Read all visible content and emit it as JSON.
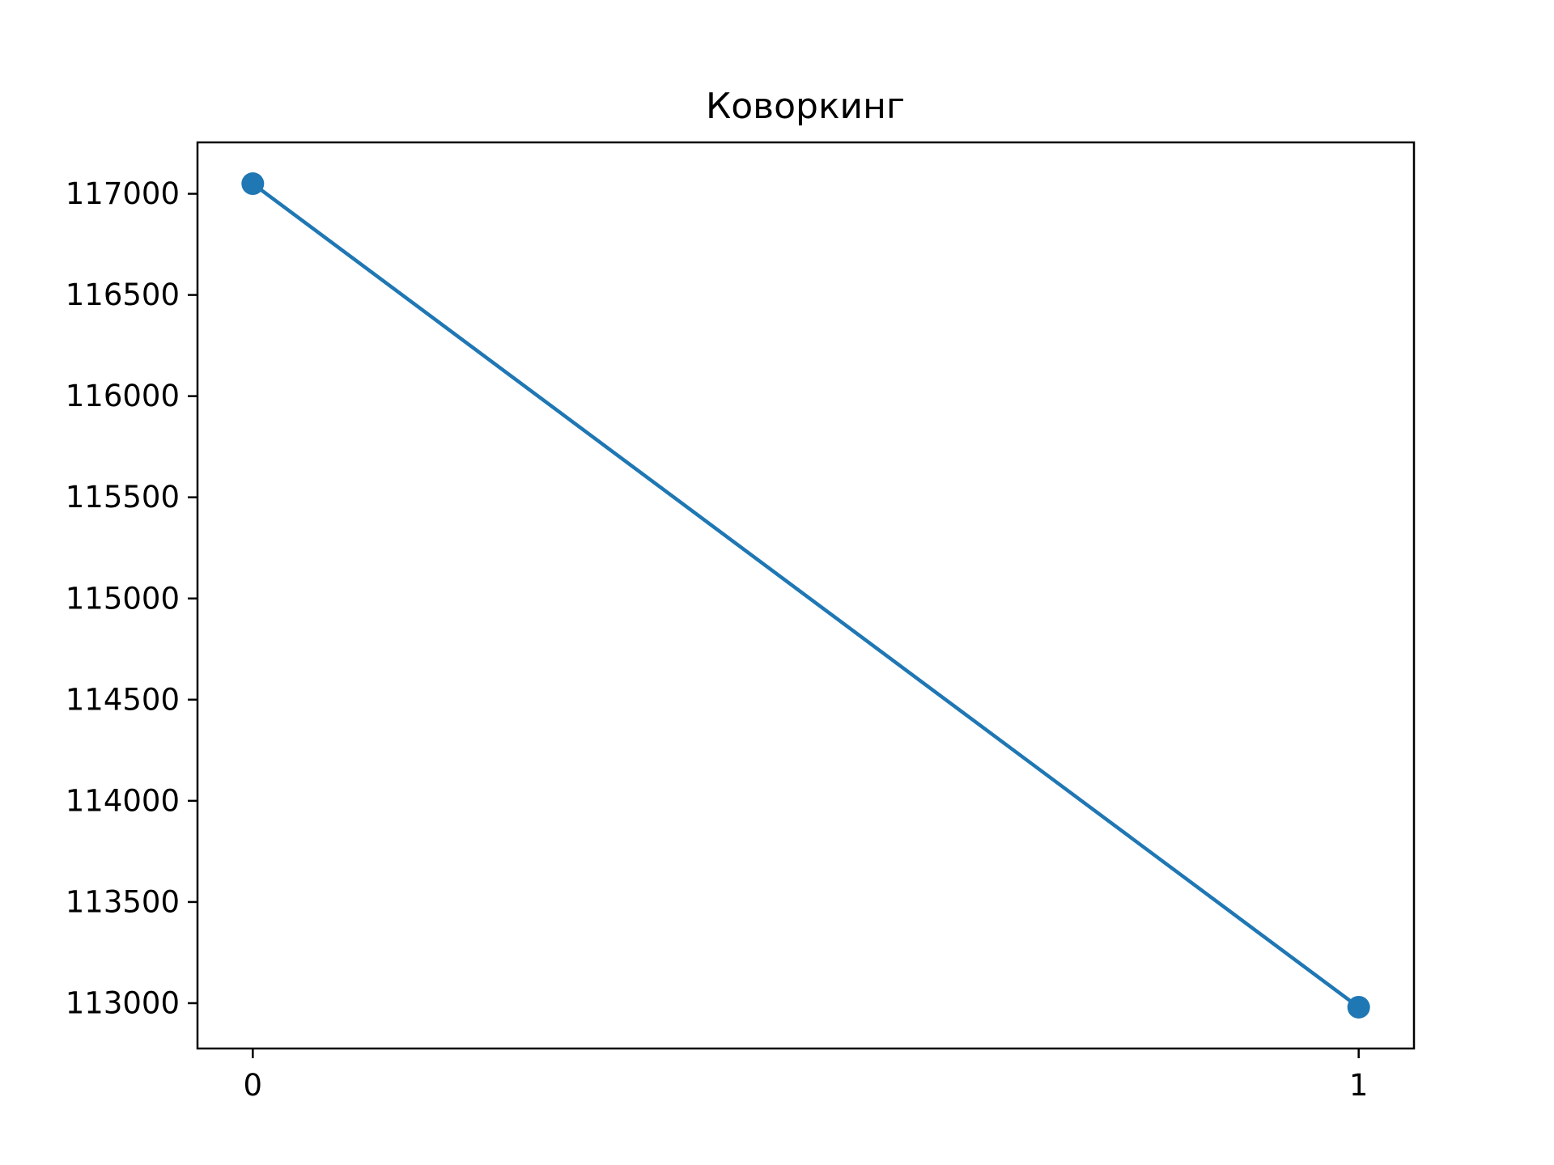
{
  "chart_data": {
    "type": "line",
    "title": "Коворкинг",
    "xlabel": "",
    "ylabel": "",
    "x": [
      0,
      1
    ],
    "series": [
      {
        "values": [
          117050,
          112980
        ],
        "color": "#1f77b4",
        "marker": "circle"
      }
    ],
    "xlim": [
      -0.05,
      1.05
    ],
    "ylim": [
      112776,
      117254
    ],
    "x_ticks": [
      0,
      1
    ],
    "x_tick_labels": [
      "0",
      "1"
    ],
    "y_ticks": [
      113000,
      113500,
      114000,
      114500,
      115000,
      115500,
      116000,
      116500,
      117000
    ],
    "y_tick_labels": [
      "113000",
      "113500",
      "114000",
      "114500",
      "115000",
      "115500",
      "116000",
      "116500",
      "117000"
    ],
    "grid": false,
    "legend": "none"
  }
}
